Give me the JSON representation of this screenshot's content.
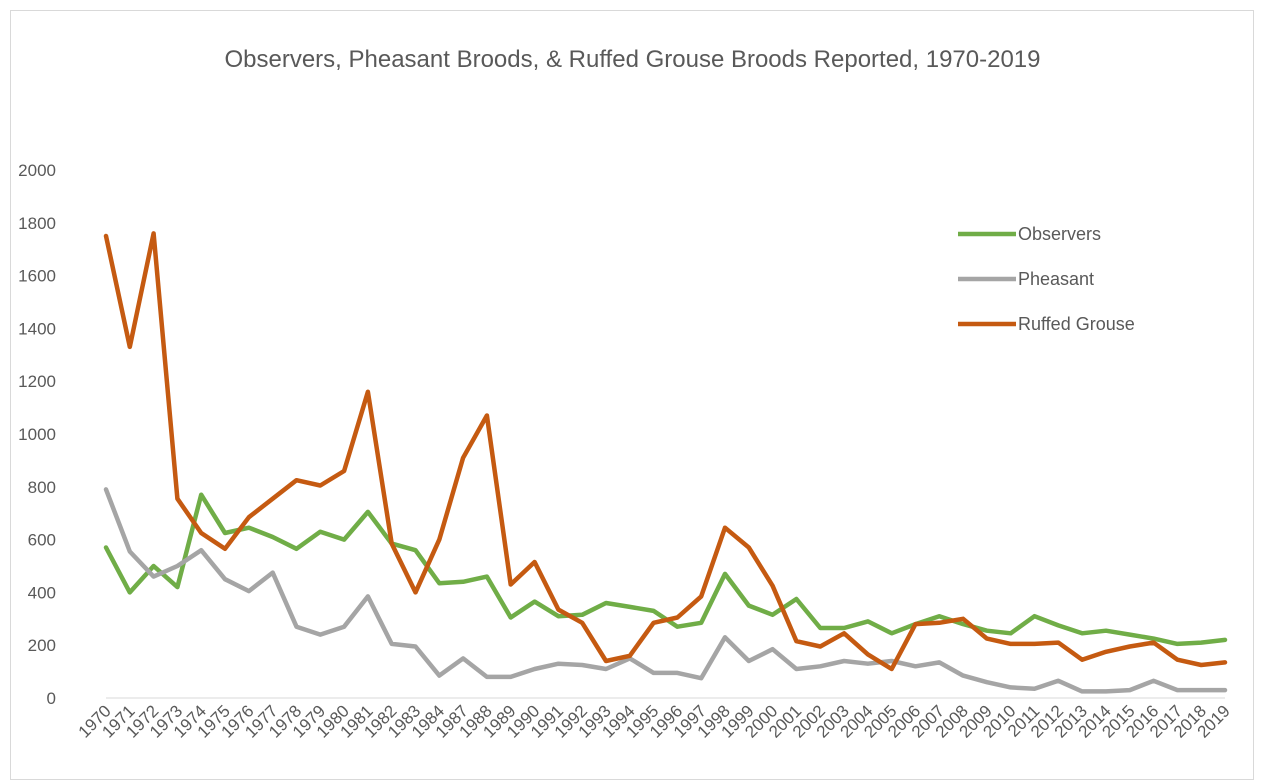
{
  "chart_data": {
    "type": "line",
    "title": "Observers, Pheasant Broods, & Ruffed Grouse Broods Reported, 1970-2019",
    "xlabel": "",
    "ylabel": "",
    "ylim": [
      0,
      2000
    ],
    "yticks": [
      0,
      200,
      400,
      600,
      800,
      1000,
      1200,
      1400,
      1600,
      1800,
      2000
    ],
    "grid": false,
    "legend_position": "right",
    "categories": [
      "1970",
      "1971",
      "1972",
      "1973",
      "1974",
      "1975",
      "1976",
      "1977",
      "1978",
      "1979",
      "1980",
      "1981",
      "1982",
      "1983",
      "1984",
      "1987",
      "1988",
      "1989",
      "1990",
      "1991",
      "1992",
      "1993",
      "1994",
      "1995",
      "1996",
      "1997",
      "1998",
      "1999",
      "2000",
      "2001",
      "2002",
      "2003",
      "2004",
      "2005",
      "2006",
      "2007",
      "2008",
      "2009",
      "2010",
      "2011",
      "2012",
      "2013",
      "2014",
      "2015",
      "2016",
      "2017",
      "2018",
      "2019"
    ],
    "series": [
      {
        "name": "Observers",
        "color": "#70ad47",
        "values": [
          570,
          400,
          500,
          420,
          770,
          625,
          645,
          610,
          565,
          630,
          600,
          705,
          585,
          560,
          435,
          440,
          460,
          305,
          365,
          310,
          315,
          360,
          345,
          330,
          270,
          285,
          470,
          350,
          315,
          375,
          265,
          265,
          290,
          245,
          280,
          310,
          280,
          255,
          245,
          310,
          275,
          245,
          255,
          240,
          225,
          205,
          210,
          220
        ]
      },
      {
        "name": "Pheasant",
        "color": "#a5a5a5",
        "values": [
          790,
          555,
          460,
          500,
          560,
          450,
          405,
          475,
          270,
          240,
          270,
          385,
          205,
          195,
          85,
          150,
          80,
          80,
          110,
          130,
          125,
          110,
          150,
          95,
          95,
          75,
          230,
          140,
          185,
          110,
          120,
          140,
          130,
          140,
          120,
          135,
          85,
          60,
          40,
          35,
          65,
          25,
          25,
          30,
          65,
          30,
          30,
          30
        ]
      },
      {
        "name": "Ruffed Grouse",
        "color": "#c55a11",
        "values": [
          1750,
          1330,
          1760,
          755,
          625,
          565,
          685,
          755,
          825,
          805,
          860,
          1160,
          585,
          400,
          600,
          910,
          1070,
          430,
          515,
          335,
          285,
          140,
          160,
          285,
          305,
          385,
          645,
          570,
          425,
          215,
          195,
          245,
          165,
          110,
          280,
          285,
          300,
          225,
          205,
          205,
          210,
          145,
          175,
          195,
          210,
          145,
          125,
          135
        ]
      }
    ]
  }
}
